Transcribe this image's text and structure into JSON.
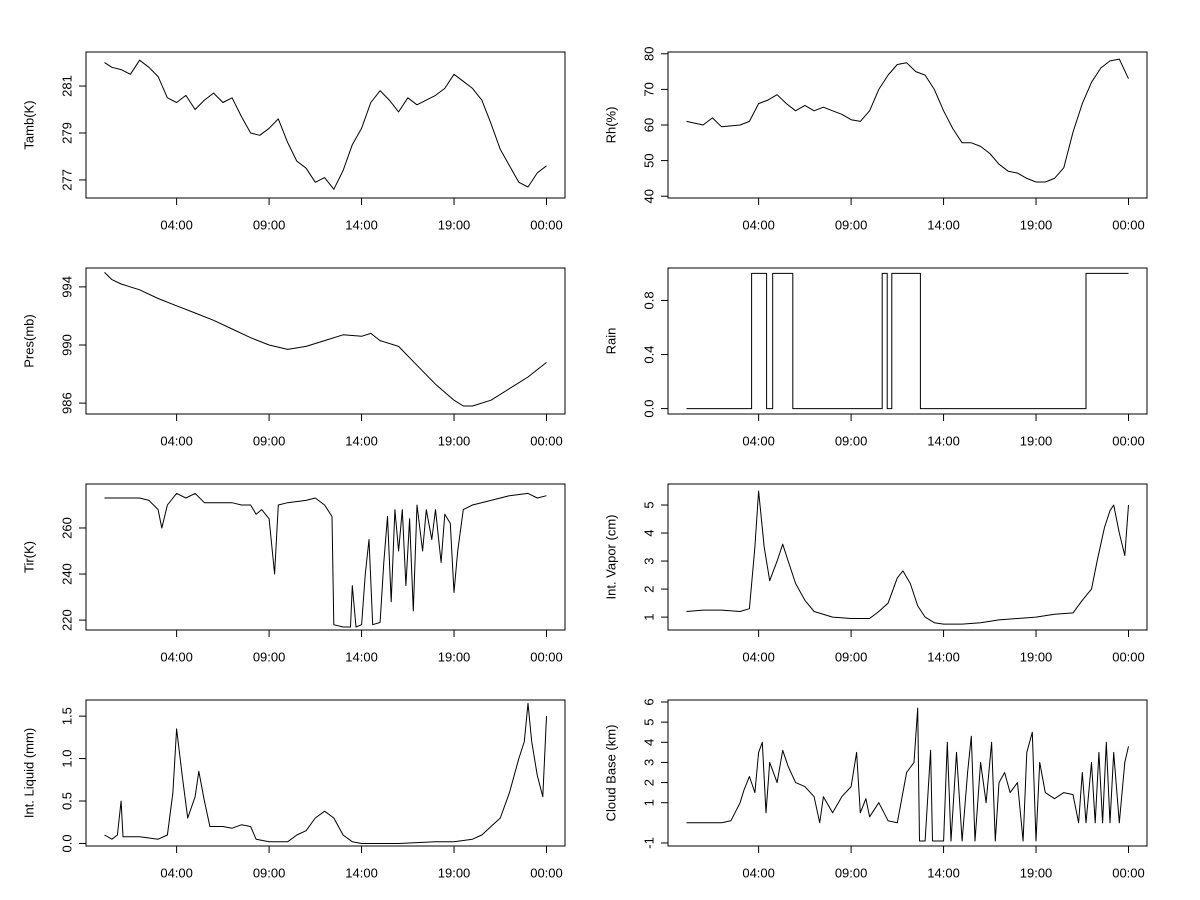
{
  "chart_data": [
    {
      "type": "line",
      "ylabel": "Tamb(K)",
      "color": "#000000",
      "x": [
        0.1,
        0.5,
        1,
        1.5,
        2,
        2.5,
        3,
        3.5,
        4,
        4.5,
        5,
        5.5,
        6,
        6.5,
        7,
        7.5,
        8,
        8.5,
        9,
        9.5,
        10,
        10.5,
        11,
        11.5,
        12,
        12.5,
        13,
        13.5,
        14,
        14.5,
        15,
        15.5,
        16,
        16.5,
        17,
        17.5,
        18,
        18.5,
        19,
        19.5,
        20,
        20.5,
        21,
        21.5,
        22,
        22.5,
        23,
        23.5,
        24
      ],
      "values": [
        282.0,
        281.8,
        281.7,
        281.5,
        282.1,
        281.8,
        281.4,
        280.5,
        280.3,
        280.6,
        280.0,
        280.4,
        280.7,
        280.3,
        280.5,
        279.7,
        279.0,
        278.9,
        279.2,
        279.6,
        278.6,
        277.8,
        277.5,
        276.9,
        277.1,
        276.6,
        277.4,
        278.5,
        279.2,
        280.3,
        280.8,
        280.4,
        279.9,
        280.5,
        280.2,
        280.4,
        280.6,
        280.9,
        281.5,
        281.2,
        280.9,
        280.4,
        279.4,
        278.3,
        277.6,
        276.9,
        276.7,
        277.3,
        277.6
      ],
      "xlim": [
        -0.9,
        25
      ],
      "xticks": [
        {
          "value": 4,
          "label": "04:00"
        },
        {
          "value": 9,
          "label": "09:00"
        },
        {
          "value": 14,
          "label": "14:00"
        },
        {
          "value": 19,
          "label": "19:00"
        },
        {
          "value": 24,
          "label": "00:00"
        }
      ],
      "ylim": [
        276.23,
        282.45
      ],
      "yticks": [
        277,
        279,
        281
      ]
    },
    {
      "type": "line",
      "ylabel": "Rh(%)",
      "color": "#000000",
      "x": [
        0.1,
        1,
        1.5,
        2,
        3,
        3.5,
        4,
        4.5,
        5,
        5.5,
        6,
        6.5,
        7,
        7.5,
        8,
        8.5,
        9,
        9.5,
        10,
        10.5,
        11,
        11.5,
        12,
        12.5,
        13,
        13.5,
        14,
        14.5,
        15,
        15.5,
        16,
        16.5,
        17,
        17.5,
        18,
        18.5,
        19,
        19.5,
        20,
        20.5,
        21,
        21.5,
        22,
        22.5,
        23,
        23.5,
        24
      ],
      "values": [
        61,
        60,
        62,
        59.5,
        60,
        61,
        66,
        67,
        68.5,
        66,
        64,
        65.5,
        64,
        65,
        64,
        63,
        61.5,
        61,
        64,
        70,
        74,
        77,
        77.5,
        75,
        74,
        70,
        64,
        59,
        55,
        55,
        54,
        52,
        49,
        47,
        46.5,
        45,
        44,
        44,
        45,
        48,
        58,
        66,
        72,
        76,
        78,
        78.5,
        73
      ],
      "xlim": [
        -0.9,
        25
      ],
      "xticks": [
        {
          "value": 4,
          "label": "04:00"
        },
        {
          "value": 9,
          "label": "09:00"
        },
        {
          "value": 14,
          "label": "14:00"
        },
        {
          "value": 19,
          "label": "19:00"
        },
        {
          "value": 24,
          "label": "00:00"
        }
      ],
      "ylim": [
        39.5,
        80.5
      ],
      "yticks": [
        40,
        50,
        60,
        70,
        80
      ]
    },
    {
      "type": "line",
      "ylabel": "Pres(mb)",
      "color": "#000000",
      "x": [
        0.1,
        0.5,
        1,
        2,
        3,
        4,
        5,
        6,
        7,
        8,
        9,
        10,
        11,
        12,
        13,
        14,
        14.5,
        15,
        16,
        17,
        18,
        19,
        19.5,
        20,
        21,
        22,
        23,
        24
      ],
      "values": [
        995.0,
        994.5,
        994.2,
        993.8,
        993.2,
        992.7,
        992.2,
        991.7,
        991.1,
        990.5,
        990.0,
        989.7,
        989.9,
        990.3,
        990.7,
        990.6,
        990.8,
        990.3,
        989.9,
        988.6,
        987.3,
        986.2,
        985.8,
        985.8,
        986.2,
        987.0,
        987.8,
        988.8
      ],
      "xlim": [
        -0.9,
        25
      ],
      "xticks": [
        {
          "value": 4,
          "label": "04:00"
        },
        {
          "value": 9,
          "label": "09:00"
        },
        {
          "value": 14,
          "label": "14:00"
        },
        {
          "value": 19,
          "label": "19:00"
        },
        {
          "value": 24,
          "label": "00:00"
        }
      ],
      "ylim": [
        985.25,
        995.3
      ],
      "yticks": [
        986,
        990,
        994
      ]
    },
    {
      "type": "line",
      "ylabel": "Rain",
      "color": "#000000",
      "x": [
        0.1,
        3.62,
        3.62,
        4.43,
        4.43,
        4.76,
        4.76,
        5.85,
        5.85,
        10.68,
        10.68,
        10.95,
        10.95,
        11.2,
        11.2,
        12.75,
        12.75,
        21.7,
        21.7,
        24
      ],
      "values": [
        0,
        0,
        1,
        1,
        0,
        0,
        1,
        1,
        0,
        0,
        1,
        1,
        0,
        0,
        1,
        1,
        0,
        0,
        1,
        1
      ],
      "xlim": [
        -0.9,
        25
      ],
      "xticks": [
        {
          "value": 4,
          "label": "04:00"
        },
        {
          "value": 9,
          "label": "09:00"
        },
        {
          "value": 14,
          "label": "14:00"
        },
        {
          "value": 19,
          "label": "19:00"
        },
        {
          "value": 24,
          "label": "00:00"
        }
      ],
      "ylim": [
        -0.04,
        1.04
      ],
      "yticks": [
        {
          "value": 0,
          "label": "0.0"
        },
        0.4,
        0.8
      ]
    },
    {
      "type": "line",
      "ylabel": "Tir(K)",
      "color": "#000000",
      "x": [
        0.1,
        1,
        2,
        2.5,
        3,
        3.2,
        3.5,
        4,
        4.5,
        5,
        5.5,
        6,
        7,
        7.5,
        8,
        8.3,
        8.6,
        9,
        9.3,
        9.5,
        10,
        11,
        11.5,
        12,
        12.4,
        12.5,
        13,
        13.4,
        13.5,
        13.7,
        14,
        14.2,
        14.4,
        14.6,
        15,
        15.2,
        15.4,
        15.6,
        15.8,
        16,
        16.2,
        16.4,
        16.6,
        16.8,
        17,
        17.3,
        17.5,
        17.8,
        18,
        18.3,
        18.5,
        18.8,
        19,
        19.2,
        19.5,
        20,
        21,
        22,
        23,
        23.5,
        24
      ],
      "values": [
        273,
        273,
        273,
        272,
        268,
        260,
        270,
        275,
        273,
        275,
        271,
        271,
        271,
        270,
        270,
        266,
        268,
        264,
        240,
        270,
        271,
        272,
        273,
        270,
        265,
        218,
        217,
        217,
        235,
        217,
        218,
        240,
        255,
        218,
        219,
        245,
        265,
        228,
        268,
        250,
        268,
        235,
        264,
        224,
        270,
        250,
        268,
        255,
        268,
        245,
        266,
        262,
        232,
        250,
        268,
        270,
        272,
        274,
        275,
        273,
        274
      ],
      "xlim": [
        -0.9,
        25
      ],
      "xticks": [
        {
          "value": 4,
          "label": "04:00"
        },
        {
          "value": 9,
          "label": "09:00"
        },
        {
          "value": 14,
          "label": "14:00"
        },
        {
          "value": 19,
          "label": "19:00"
        },
        {
          "value": 24,
          "label": "00:00"
        }
      ],
      "ylim": [
        215.7,
        279.1
      ],
      "yticks": [
        220,
        240,
        260
      ]
    },
    {
      "type": "line",
      "ylabel": "Int. Vapor (cm)",
      "color": "#000000",
      "x": [
        0.1,
        1,
        2,
        3,
        3.5,
        3.8,
        4,
        4.3,
        4.6,
        5,
        5.3,
        5.6,
        6,
        6.5,
        7,
        8,
        9,
        10,
        10.5,
        11,
        11.5,
        11.8,
        12.2,
        12.6,
        13,
        13.5,
        14,
        15,
        16,
        17,
        18,
        19,
        20,
        21,
        21.5,
        22,
        22.3,
        22.7,
        23,
        23.2,
        23.5,
        23.8,
        24
      ],
      "values": [
        1.2,
        1.25,
        1.25,
        1.2,
        1.3,
        3.5,
        5.5,
        3.5,
        2.3,
        3.0,
        3.6,
        3.0,
        2.2,
        1.6,
        1.2,
        1.0,
        0.95,
        0.95,
        1.2,
        1.5,
        2.4,
        2.65,
        2.2,
        1.4,
        1.0,
        0.8,
        0.75,
        0.75,
        0.8,
        0.9,
        0.95,
        1.0,
        1.1,
        1.15,
        1.6,
        2.0,
        3.0,
        4.2,
        4.8,
        5.0,
        4.0,
        3.2,
        5.0
      ],
      "xlim": [
        -0.9,
        25
      ],
      "xticks": [
        {
          "value": 4,
          "label": "04:00"
        },
        {
          "value": 9,
          "label": "09:00"
        },
        {
          "value": 14,
          "label": "14:00"
        },
        {
          "value": 19,
          "label": "19:00"
        },
        {
          "value": 24,
          "label": "00:00"
        }
      ],
      "ylim": [
        0.54,
        5.75
      ],
      "yticks": [
        1,
        2,
        3,
        4,
        5
      ]
    },
    {
      "type": "line",
      "ylabel": "Int. Liquid (mm)",
      "color": "#000000",
      "x": [
        0.1,
        0.5,
        0.8,
        1,
        1.1,
        2,
        3,
        3.5,
        3.8,
        4,
        4.3,
        4.6,
        5,
        5.2,
        5.5,
        5.8,
        6.5,
        7,
        7.5,
        8,
        8.3,
        9,
        10,
        10.5,
        11,
        11.5,
        12,
        12.5,
        13,
        13.5,
        14,
        16,
        18,
        19,
        20,
        20.5,
        21,
        21.5,
        22,
        22.5,
        22.8,
        23,
        23.2,
        23.5,
        23.8,
        24
      ],
      "values": [
        0.1,
        0.05,
        0.1,
        0.5,
        0.08,
        0.08,
        0.05,
        0.1,
        0.6,
        1.35,
        0.8,
        0.3,
        0.55,
        0.85,
        0.5,
        0.2,
        0.2,
        0.18,
        0.22,
        0.2,
        0.05,
        0.02,
        0.02,
        0.1,
        0.15,
        0.3,
        0.38,
        0.3,
        0.1,
        0.02,
        0,
        0,
        0.02,
        0.02,
        0.05,
        0.1,
        0.2,
        0.3,
        0.6,
        1.0,
        1.2,
        1.65,
        1.2,
        0.8,
        0.55,
        1.5
      ],
      "xlim": [
        -0.9,
        25
      ],
      "xticks": [
        {
          "value": 4,
          "label": "04:00"
        },
        {
          "value": 9,
          "label": "09:00"
        },
        {
          "value": 14,
          "label": "14:00"
        },
        {
          "value": 19,
          "label": "19:00"
        },
        {
          "value": 24,
          "label": "00:00"
        }
      ],
      "ylim": [
        -0.03,
        1.69
      ],
      "yticks": [
        {
          "value": 0,
          "label": "0.0"
        },
        0.5,
        {
          "value": 1,
          "label": "1.0"
        },
        1.5
      ]
    },
    {
      "type": "line",
      "ylabel": "Cloud Base (km)",
      "color": "#000000",
      "x": [
        0.1,
        1,
        2,
        2.5,
        3,
        3.2,
        3.5,
        3.8,
        4,
        4.2,
        4.4,
        4.6,
        5,
        5.3,
        5.6,
        6,
        6.5,
        7,
        7.3,
        7.5,
        8,
        8.5,
        9,
        9.3,
        9.5,
        9.8,
        10,
        10.5,
        11,
        11.5,
        12,
        12.4,
        12.6,
        12.7,
        13,
        13.3,
        13.4,
        14,
        14.2,
        14.4,
        14.7,
        15,
        15.3,
        15.5,
        15.7,
        16,
        16.3,
        16.6,
        16.8,
        17,
        17.3,
        17.6,
        18,
        18.3,
        18.5,
        18.8,
        19,
        19.2,
        19.5,
        20,
        20.5,
        21,
        21.3,
        21.5,
        21.7,
        22,
        22.2,
        22.4,
        22.6,
        22.8,
        23,
        23.2,
        23.5,
        23.8,
        24
      ],
      "values": [
        0,
        0,
        0,
        0.1,
        1,
        1.6,
        2.3,
        1.5,
        3.5,
        4.0,
        0.5,
        3.0,
        2.0,
        3.6,
        2.8,
        2.0,
        1.8,
        1.3,
        0,
        1.3,
        0.5,
        1.3,
        1.8,
        3.5,
        0.5,
        1.2,
        0.3,
        1.0,
        0.1,
        0,
        2.5,
        3.0,
        5.7,
        -0.9,
        -0.9,
        3.6,
        -0.9,
        -0.9,
        4.0,
        -0.9,
        3.5,
        -0.9,
        2.5,
        4.3,
        -0.9,
        3.0,
        1.0,
        4.0,
        -0.9,
        2.0,
        2.5,
        1.5,
        2.0,
        -0.9,
        3.5,
        4.5,
        -0.9,
        3.0,
        1.5,
        1.2,
        1.5,
        1.4,
        0,
        2.5,
        0,
        3.0,
        0,
        3.5,
        0,
        4.0,
        0,
        3.5,
        0,
        3.0,
        3.8
      ],
      "xlim": [
        -0.9,
        25
      ],
      "xticks": [
        {
          "value": 4,
          "label": "04:00"
        },
        {
          "value": 9,
          "label": "09:00"
        },
        {
          "value": 14,
          "label": "14:00"
        },
        {
          "value": 19,
          "label": "19:00"
        },
        {
          "value": 24,
          "label": "00:00"
        }
      ],
      "ylim": [
        -1.15,
        6.1
      ],
      "yticks": [
        -1,
        1,
        2,
        3,
        4,
        5,
        6
      ]
    }
  ]
}
